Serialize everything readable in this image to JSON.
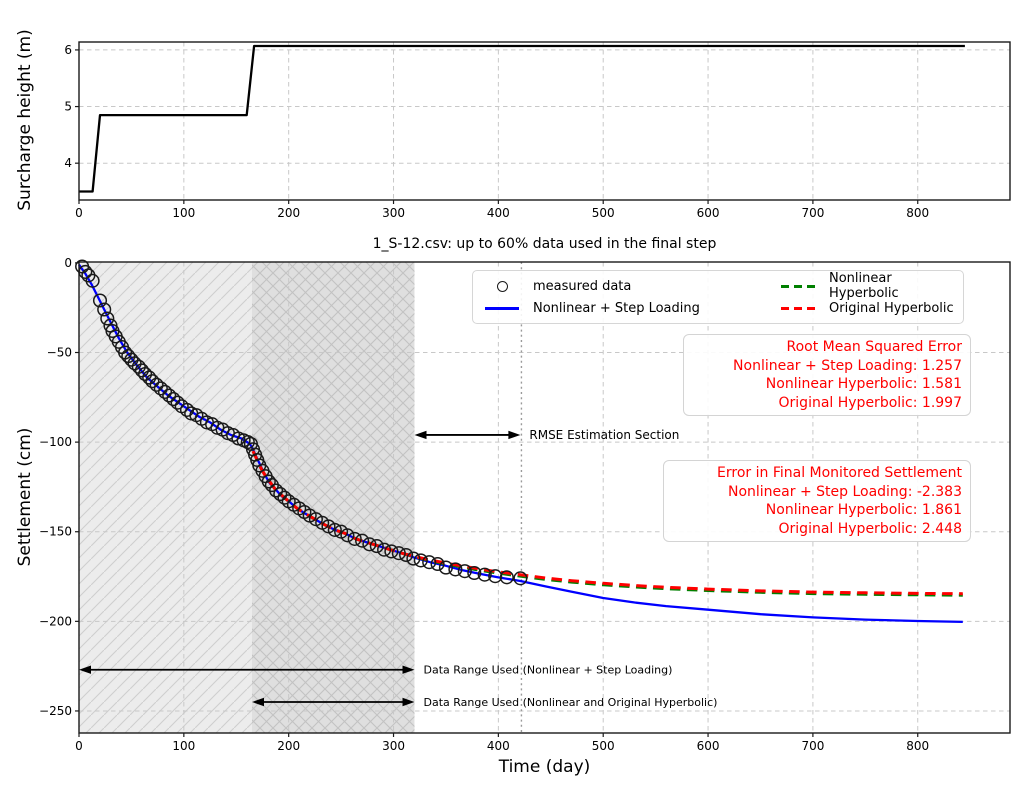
{
  "accent_colors": {
    "measured": "#1a1a1a",
    "step_loading_blue": "#0000ff",
    "nonlinear_hyperbolic_green": "#008000",
    "original_hyperbolic_red": "#ff0000",
    "annotation_red_text": "#ff0000",
    "grid": "#c8c8c8",
    "span_light_fill": "#ececec",
    "span_dark_overlay": "rgba(0,0,0,0.055)",
    "hatch_line": "#cfcfcf",
    "vline_gray": "#9a9a9a"
  },
  "chart_data": [
    {
      "type": "line",
      "name": "surcharge-height",
      "title": "",
      "xlabel": "",
      "ylabel": "Surcharge height (m)",
      "xlim": [
        0,
        888
      ],
      "ylim": [
        3.35,
        6.14
      ],
      "grid": true,
      "xticks": [
        0,
        100,
        200,
        300,
        400,
        500,
        600,
        700,
        800
      ],
      "xtick_labels": [
        "0",
        "100",
        "200",
        "300",
        "400",
        "500",
        "600",
        "700",
        "800"
      ],
      "yticks": [
        4,
        5,
        6
      ],
      "ytick_labels": [
        "4",
        "5",
        "6"
      ],
      "series": [
        {
          "name": "surcharge height",
          "style": "solid",
          "color": "#000000",
          "points": [
            [
              0,
              3.5
            ],
            [
              13,
              3.5
            ],
            [
              20,
              4.85
            ],
            [
              160,
              4.85
            ],
            [
              167,
              6.07
            ],
            [
              845,
              6.07
            ]
          ]
        }
      ]
    },
    {
      "type": "scatter",
      "name": "settlement",
      "title": "1_S-12.csv: up to 60% data used in the final step",
      "xlabel": "Time (day)",
      "ylabel": "Settlement (cm)",
      "xlim": [
        0,
        888
      ],
      "ylim": [
        -262.3,
        0.5
      ],
      "grid": true,
      "xticks": [
        0,
        100,
        200,
        300,
        400,
        500,
        600,
        700,
        800
      ],
      "xtick_labels": [
        "0",
        "100",
        "200",
        "300",
        "400",
        "500",
        "600",
        "700",
        "800"
      ],
      "yticks": [
        0,
        -50,
        -100,
        -150,
        -200,
        -250
      ],
      "ytick_labels": [
        "0",
        "−50",
        "−100",
        "−150",
        "−200",
        "−250"
      ],
      "measured": [
        [
          3,
          -2
        ],
        [
          6,
          -5
        ],
        [
          9,
          -7
        ],
        [
          13,
          -10
        ],
        [
          20,
          -21
        ],
        [
          24,
          -26
        ],
        [
          27,
          -31
        ],
        [
          30,
          -35
        ],
        [
          32,
          -38
        ],
        [
          35,
          -41
        ],
        [
          38,
          -44
        ],
        [
          41,
          -47
        ],
        [
          44,
          -50
        ],
        [
          47,
          -52
        ],
        [
          50,
          -54
        ],
        [
          53,
          -56
        ],
        [
          57,
          -58
        ],
        [
          60,
          -60
        ],
        [
          63,
          -62
        ],
        [
          67,
          -64
        ],
        [
          70,
          -66
        ],
        [
          74,
          -68
        ],
        [
          78,
          -70
        ],
        [
          82,
          -72
        ],
        [
          86,
          -74
        ],
        [
          90,
          -76
        ],
        [
          94,
          -78
        ],
        [
          98,
          -80
        ],
        [
          103,
          -82
        ],
        [
          107,
          -84
        ],
        [
          112,
          -85
        ],
        [
          117,
          -87
        ],
        [
          122,
          -89
        ],
        [
          127,
          -90
        ],
        [
          132,
          -92
        ],
        [
          137,
          -93
        ],
        [
          142,
          -95
        ],
        [
          147,
          -96
        ],
        [
          152,
          -98
        ],
        [
          157,
          -99
        ],
        [
          161,
          -100
        ],
        [
          164,
          -101
        ],
        [
          166,
          -104
        ],
        [
          168,
          -107
        ],
        [
          170,
          -110
        ],
        [
          172,
          -113
        ],
        [
          175,
          -116
        ],
        [
          178,
          -119
        ],
        [
          181,
          -122
        ],
        [
          184,
          -124
        ],
        [
          188,
          -127
        ],
        [
          192,
          -129
        ],
        [
          196,
          -131
        ],
        [
          200,
          -133
        ],
        [
          205,
          -135
        ],
        [
          210,
          -137
        ],
        [
          215,
          -139
        ],
        [
          220,
          -141
        ],
        [
          226,
          -143
        ],
        [
          232,
          -145
        ],
        [
          238,
          -147
        ],
        [
          244,
          -149
        ],
        [
          250,
          -150
        ],
        [
          256,
          -152
        ],
        [
          263,
          -154
        ],
        [
          270,
          -155
        ],
        [
          277,
          -157
        ],
        [
          284,
          -158
        ],
        [
          291,
          -160
        ],
        [
          298,
          -161
        ],
        [
          305,
          -162
        ],
        [
          312,
          -163
        ],
        [
          319,
          -165
        ],
        [
          326,
          -166
        ],
        [
          334,
          -167
        ],
        [
          342,
          -168
        ],
        [
          350,
          -170
        ],
        [
          359,
          -171
        ],
        [
          368,
          -172
        ],
        [
          377,
          -173
        ],
        [
          387,
          -174
        ],
        [
          397,
          -174.8
        ],
        [
          408,
          -175.4
        ],
        [
          421,
          -176
        ]
      ],
      "series": [
        {
          "name": "Nonlinear + Step Loading",
          "style": "solid",
          "color": "#0000ff",
          "points": [
            [
              0,
              -1
            ],
            [
              6,
              -6
            ],
            [
              12,
              -12
            ],
            [
              18,
              -19
            ],
            [
              24,
              -26
            ],
            [
              30,
              -33
            ],
            [
              38,
              -42
            ],
            [
              46,
              -50
            ],
            [
              55,
              -57
            ],
            [
              65,
              -64
            ],
            [
              75,
              -69
            ],
            [
              85,
              -74
            ],
            [
              95,
              -78
            ],
            [
              105,
              -82
            ],
            [
              115,
              -86
            ],
            [
              125,
              -89
            ],
            [
              135,
              -93
            ],
            [
              145,
              -96
            ],
            [
              155,
              -98
            ],
            [
              163,
              -101
            ],
            [
              166,
              -104
            ],
            [
              169,
              -108
            ],
            [
              173,
              -113
            ],
            [
              177,
              -118
            ],
            [
              182,
              -123
            ],
            [
              187,
              -126
            ],
            [
              193,
              -130
            ],
            [
              200,
              -133
            ],
            [
              208,
              -137
            ],
            [
              216,
              -140
            ],
            [
              225,
              -143
            ],
            [
              234,
              -146
            ],
            [
              244,
              -149
            ],
            [
              254,
              -151
            ],
            [
              264,
              -154
            ],
            [
              275,
              -156
            ],
            [
              286,
              -158
            ],
            [
              297,
              -160
            ],
            [
              308,
              -162
            ],
            [
              320,
              -164.5
            ],
            [
              335,
              -167
            ],
            [
              350,
              -169
            ],
            [
              366,
              -171.5
            ],
            [
              382,
              -173.5
            ],
            [
              400,
              -175.5
            ],
            [
              421,
              -177.5
            ],
            [
              445,
              -180.5
            ],
            [
              470,
              -183.5
            ],
            [
              500,
              -187
            ],
            [
              530,
              -189.5
            ],
            [
              560,
              -191.5
            ],
            [
              600,
              -193.5
            ],
            [
              650,
              -196
            ],
            [
              700,
              -197.8
            ],
            [
              750,
              -199
            ],
            [
              800,
              -199.8
            ],
            [
              843,
              -200.3
            ]
          ]
        },
        {
          "name": "Nonlinear Hyperbolic",
          "style": "dashed",
          "color": "#008000",
          "points": [
            [
              166,
              -105
            ],
            [
              170,
              -110
            ],
            [
              174,
              -115
            ],
            [
              178,
              -119
            ],
            [
              183,
              -123
            ],
            [
              188,
              -127
            ],
            [
              194,
              -130
            ],
            [
              200,
              -133
            ],
            [
              208,
              -137
            ],
            [
              216,
              -140
            ],
            [
              225,
              -143
            ],
            [
              234,
              -146
            ],
            [
              244,
              -149
            ],
            [
              254,
              -151
            ],
            [
              264,
              -154
            ],
            [
              275,
              -156
            ],
            [
              286,
              -158
            ],
            [
              297,
              -160
            ],
            [
              308,
              -162
            ],
            [
              320,
              -164
            ],
            [
              335,
              -166.2
            ],
            [
              350,
              -168
            ],
            [
              366,
              -169.8
            ],
            [
              382,
              -171.5
            ],
            [
              400,
              -173.1
            ],
            [
              421,
              -174.8
            ],
            [
              445,
              -176.6
            ],
            [
              470,
              -178.1
            ],
            [
              500,
              -179.6
            ],
            [
              530,
              -180.8
            ],
            [
              560,
              -181.8
            ],
            [
              600,
              -182.8
            ],
            [
              650,
              -183.8
            ],
            [
              700,
              -184.5
            ],
            [
              750,
              -184.9
            ],
            [
              800,
              -185.2
            ],
            [
              843,
              -185.4
            ]
          ]
        },
        {
          "name": "Original Hyperbolic",
          "style": "dashed",
          "color": "#ff0000",
          "points": [
            [
              166,
              -105
            ],
            [
              170,
              -110
            ],
            [
              174,
              -115
            ],
            [
              178,
              -119
            ],
            [
              183,
              -123
            ],
            [
              188,
              -127
            ],
            [
              194,
              -130
            ],
            [
              200,
              -133
            ],
            [
              208,
              -137
            ],
            [
              216,
              -140
            ],
            [
              225,
              -143
            ],
            [
              234,
              -146
            ],
            [
              244,
              -149
            ],
            [
              254,
              -151
            ],
            [
              264,
              -154
            ],
            [
              275,
              -156
            ],
            [
              286,
              -158
            ],
            [
              297,
              -160
            ],
            [
              308,
              -162
            ],
            [
              320,
              -163.8
            ],
            [
              335,
              -165.8
            ],
            [
              350,
              -167.5
            ],
            [
              366,
              -169.2
            ],
            [
              382,
              -170.8
            ],
            [
              400,
              -172.4
            ],
            [
              421,
              -174
            ],
            [
              445,
              -175.8
            ],
            [
              470,
              -177.3
            ],
            [
              500,
              -178.8
            ],
            [
              530,
              -180
            ],
            [
              560,
              -181
            ],
            [
              600,
              -182
            ],
            [
              650,
              -183
            ],
            [
              700,
              -183.7
            ],
            [
              750,
              -184.1
            ],
            [
              800,
              -184.4
            ],
            [
              843,
              -184.6
            ]
          ]
        }
      ],
      "spans": [
        {
          "x0": 0,
          "x1": 320,
          "hatch": "fwd"
        },
        {
          "x0": 165,
          "x1": 320,
          "hatch": "back"
        }
      ],
      "vline": {
        "x": 422
      },
      "annotations": [
        {
          "name": "rmse-section-arrow",
          "x0": 320,
          "x1": 421,
          "y": -96,
          "label": "RMSE Estimation Section",
          "font": 12
        },
        {
          "name": "range-step-loading-arrow",
          "x0": 0,
          "x1": 320,
          "y": -227,
          "label": "Data Range Used (Nonlinear + Step Loading)",
          "font": 11
        },
        {
          "name": "range-hyperbolic-arrow",
          "x0": 165,
          "x1": 320,
          "y": -245,
          "label": "Data Range Used (Nonlinear and Original Hyperbolic)",
          "font": 11
        }
      ],
      "legend": {
        "items": [
          {
            "label": "measured data",
            "marker": "circle",
            "color": "#1a1a1a"
          },
          {
            "label": "Nonlinear + Step Loading",
            "marker": "solid-line",
            "color": "#0000ff"
          },
          {
            "label": "Nonlinear Hyperbolic",
            "marker": "dashed-line",
            "color": "#008000"
          },
          {
            "label": "Original Hyperbolic",
            "marker": "dashed-line",
            "color": "#ff0000"
          }
        ]
      },
      "rmse_box": {
        "title": "Root Mean Squared Error",
        "lines": [
          "Nonlinear + Step Loading: 1.257",
          "Nonlinear Hyperbolic: 1.581",
          "Original Hyperbolic: 1.997"
        ]
      },
      "error_box": {
        "title": "Error in Final Monitored Settlement",
        "lines": [
          "Nonlinear + Step Loading: -2.383",
          "Nonlinear Hyperbolic: 1.861",
          "Original Hyperbolic: 2.448"
        ]
      }
    }
  ]
}
